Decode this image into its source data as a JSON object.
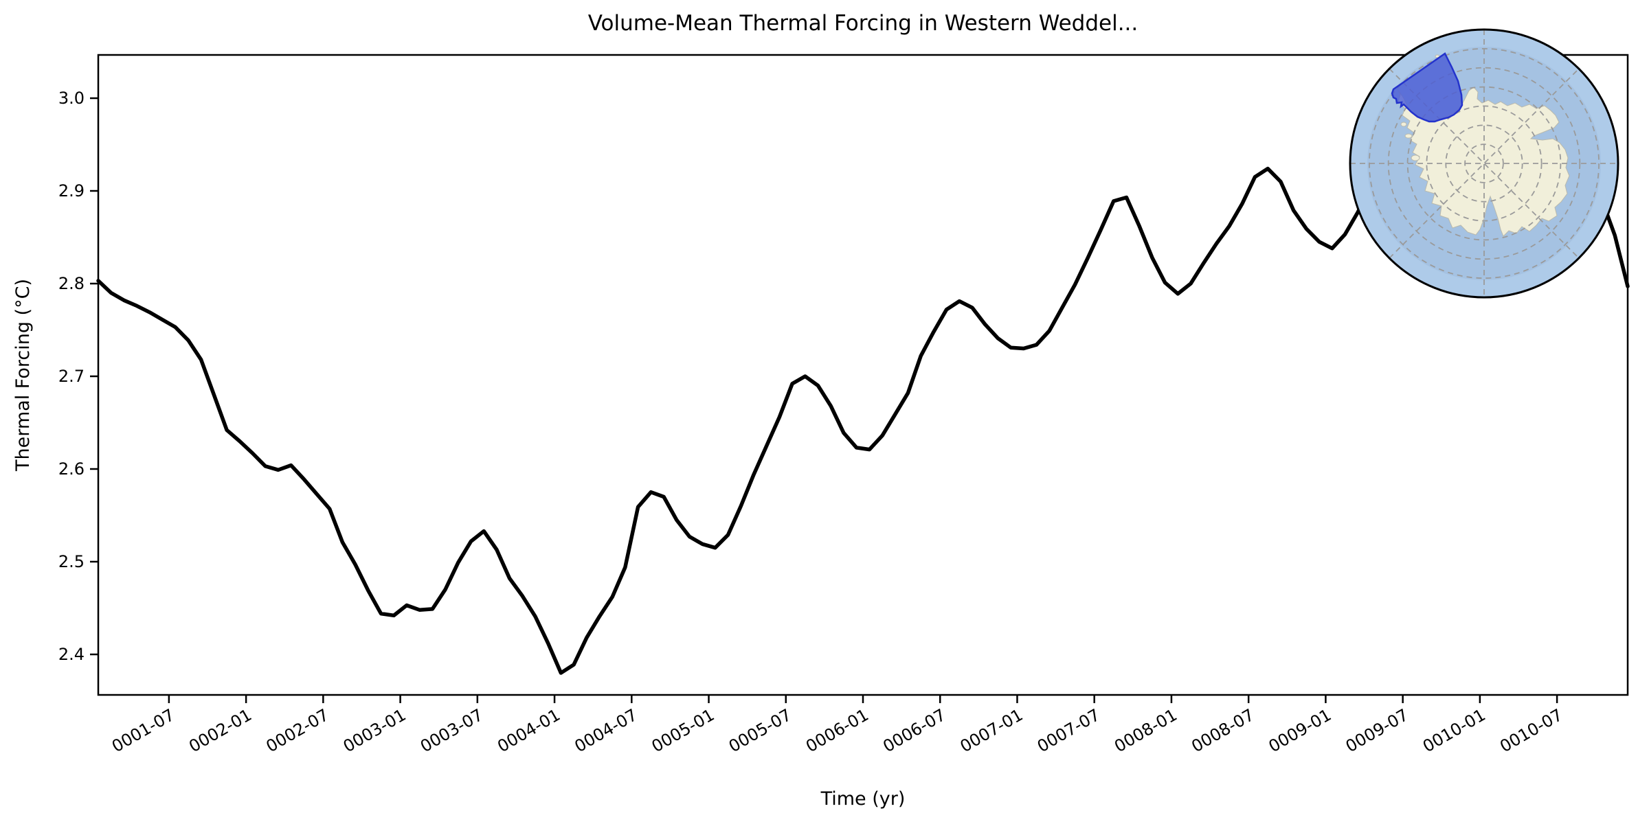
{
  "title": "Volume-Mean Thermal Forcing in Western Weddel...",
  "chart_data": {
    "type": "line",
    "title": "Volume-Mean Thermal Forcing in Western Weddel...",
    "xlabel": "Time (yr)",
    "ylabel": "Thermal Forcing (°C)",
    "x_start": "0001-01",
    "x_end": "0010-12",
    "x_interval": "monthly",
    "x_tick_labels": [
      "0001-07",
      "0002-01",
      "0002-07",
      "0003-01",
      "0003-07",
      "0004-01",
      "0004-07",
      "0005-01",
      "0005-07",
      "0006-01",
      "0006-07",
      "0007-01",
      "0007-07",
      "0008-01",
      "0008-07",
      "0009-01",
      "0009-07",
      "0010-01",
      "0010-07"
    ],
    "y_tick_labels": [
      "2.4",
      "2.5",
      "2.6",
      "2.7",
      "2.8",
      "2.9",
      "3.0"
    ],
    "ylim": [
      2.356,
      3.047
    ],
    "grid": false,
    "legend": "none",
    "series": [
      {
        "name": "volume-mean thermal forcing",
        "color": "#000000",
        "linewidth": 5.5,
        "values": [
          2.803,
          2.79,
          2.782,
          2.776,
          2.769,
          2.761,
          2.753,
          2.739,
          2.718,
          2.68,
          2.642,
          2.63,
          2.617,
          2.603,
          2.599,
          2.604,
          2.589,
          2.573,
          2.557,
          2.521,
          2.497,
          2.469,
          2.444,
          2.442,
          2.453,
          2.448,
          2.449,
          2.47,
          2.499,
          2.522,
          2.533,
          2.513,
          2.482,
          2.463,
          2.441,
          2.412,
          2.38,
          2.389,
          2.418,
          2.441,
          2.462,
          2.494,
          2.559,
          2.575,
          2.57,
          2.545,
          2.527,
          2.519,
          2.515,
          2.529,
          2.56,
          2.594,
          2.625,
          2.656,
          2.692,
          2.7,
          2.69,
          2.668,
          2.639,
          2.623,
          2.621,
          2.636,
          2.659,
          2.682,
          2.722,
          2.748,
          2.772,
          2.781,
          2.774,
          2.756,
          2.741,
          2.731,
          2.73,
          2.734,
          2.749,
          2.774,
          2.799,
          2.828,
          2.858,
          2.889,
          2.893,
          2.862,
          2.828,
          2.801,
          2.789,
          2.8,
          2.822,
          2.843,
          2.862,
          2.886,
          2.915,
          2.924,
          2.91,
          2.879,
          2.859,
          2.845,
          2.838,
          2.853,
          2.877,
          2.905,
          2.93,
          2.95,
          2.96,
          2.952,
          2.935,
          2.918,
          2.905,
          2.9,
          2.903,
          2.92,
          2.945,
          2.968,
          2.985,
          2.993,
          2.996,
          2.975,
          2.938,
          2.89,
          2.852,
          2.797
        ]
      }
    ]
  },
  "inset_map": {
    "projection": "south-polar-stereographic",
    "ocean_color": "#a5c2e2",
    "outer_ocean_color": "#aecbe9",
    "land_color": "#f1efda",
    "land_edge_color": "#b9b9ad",
    "graticule_color": "#9a9a9a",
    "outline_color": "#000000",
    "region_fill": "#4a5bd6",
    "region_edge": "#2433cc"
  }
}
